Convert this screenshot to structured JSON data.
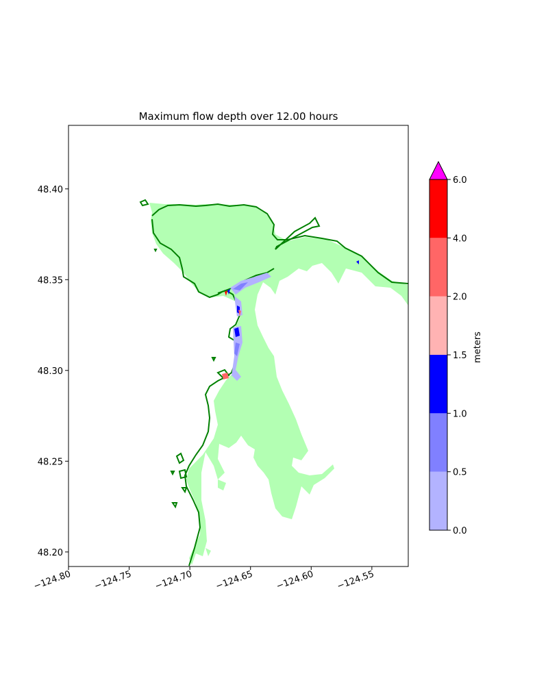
{
  "chart_data": {
    "type": "heatmap",
    "title": "Maximum flow depth over 12.00 hours",
    "xlabel": "",
    "ylabel": "",
    "xlim": [
      -124.8,
      -124.52
    ],
    "ylim": [
      48.192,
      48.435
    ],
    "x_ticks": [
      -124.8,
      -124.75,
      -124.7,
      -124.65,
      -124.6,
      -124.55
    ],
    "x_tick_labels": [
      "−124.80",
      "−124.75",
      "−124.70",
      "−124.65",
      "−124.60",
      "−124.55"
    ],
    "y_ticks": [
      48.2,
      48.25,
      48.3,
      48.35,
      48.4
    ],
    "y_tick_labels": [
      "48.20",
      "48.25",
      "48.30",
      "48.35",
      "48.40"
    ],
    "grid": false,
    "colorbar": {
      "label": "meters",
      "boundaries": [
        0.0,
        0.5,
        1.0,
        1.5,
        2.0,
        4.0,
        6.0
      ],
      "tick_labels": [
        "0.0",
        "0.5",
        "1.0",
        "1.5",
        "2.0",
        "4.0",
        "6.0"
      ],
      "colors": [
        "#b3b3ff",
        "#8080ff",
        "#0000ff",
        "#ffb3b3",
        "#ff6666",
        "#ff0000"
      ],
      "extend_max": true,
      "over_color": "#ff00ff"
    },
    "colors": {
      "dry_land": "#b3ffb3",
      "shoreline": "#008000"
    }
  }
}
